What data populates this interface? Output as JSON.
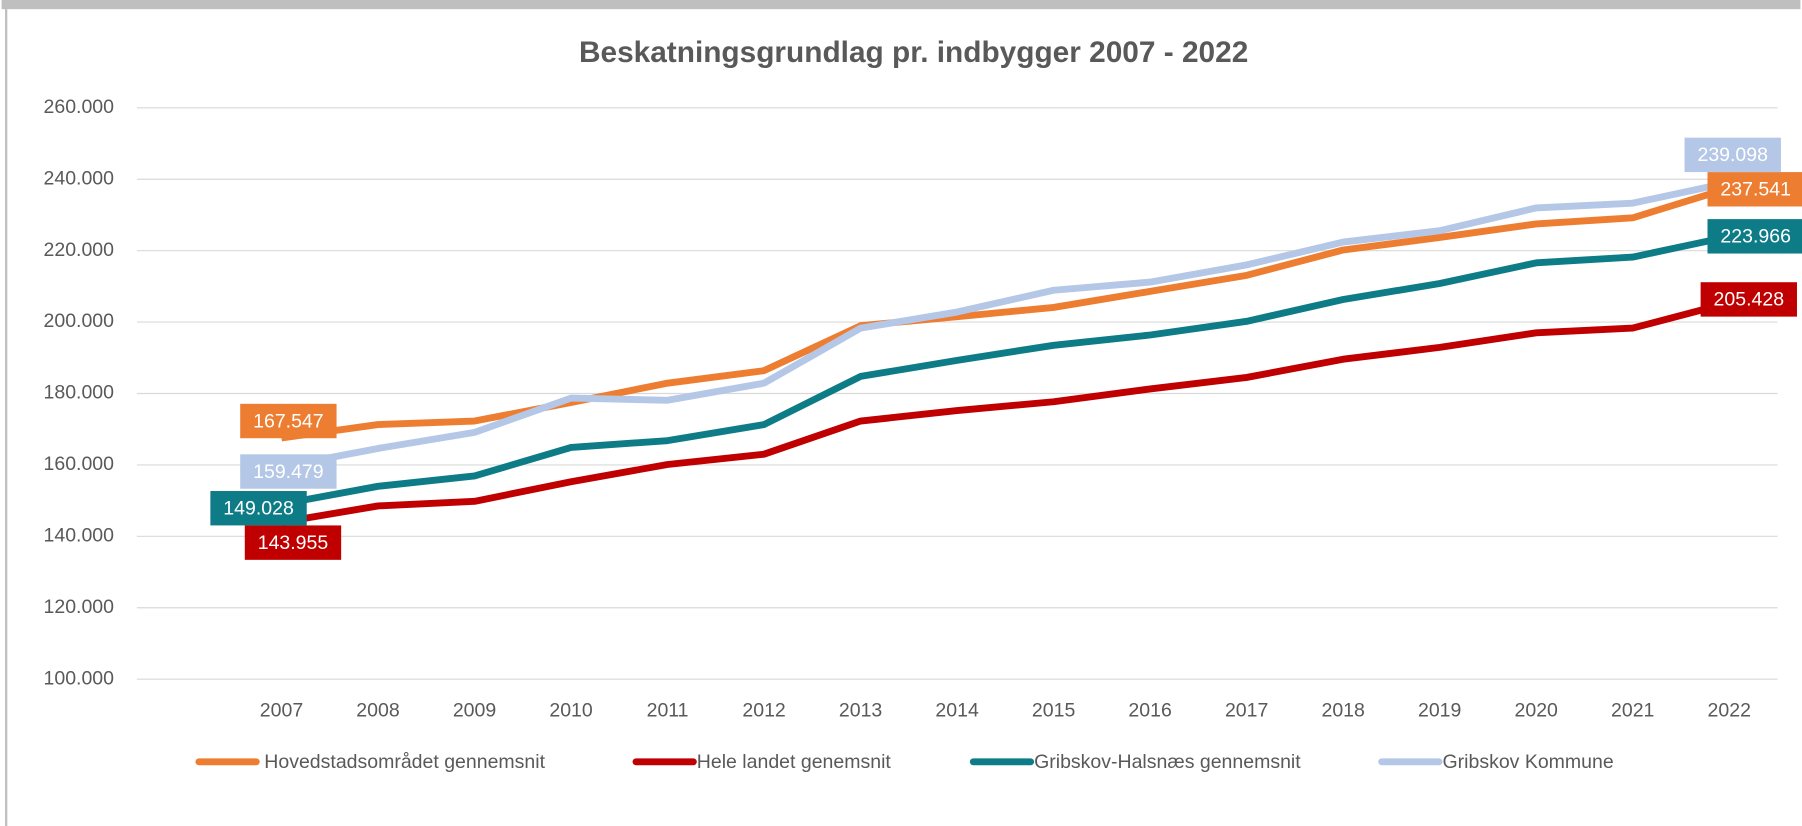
{
  "chart_data": {
    "type": "line",
    "title": "Beskatningsgrundlag pr. indbygger 2007 - 2022",
    "categories": [
      "2007",
      "2008",
      "2009",
      "2010",
      "2011",
      "2012",
      "2013",
      "2014",
      "2015",
      "2016",
      "2017",
      "2018",
      "2019",
      "2020",
      "2021",
      "2022"
    ],
    "ylim": [
      100000,
      260000
    ],
    "yticks": [
      {
        "value": 100000,
        "label": "100.000"
      },
      {
        "value": 120000,
        "label": "120.000"
      },
      {
        "value": 140000,
        "label": "140.000"
      },
      {
        "value": 160000,
        "label": "160.000"
      },
      {
        "value": 180000,
        "label": "180.000"
      },
      {
        "value": 200000,
        "label": "200.000"
      },
      {
        "value": 220000,
        "label": "220.000"
      },
      {
        "value": 240000,
        "label": "240.000"
      },
      {
        "value": 260000,
        "label": "260.000"
      }
    ],
    "grid": true,
    "legend": "bottom",
    "series": [
      {
        "name": "Hovedstadsområdet gennemsnit",
        "color": "#ed7d31",
        "values": [
          167547,
          171300,
          172300,
          177500,
          182900,
          186400,
          199000,
          201500,
          204100,
          208600,
          213100,
          220200,
          223700,
          227500,
          229200,
          237541
        ],
        "value_labels": [
          "167.547",
          null,
          null,
          null,
          null,
          null,
          null,
          null,
          null,
          null,
          null,
          null,
          null,
          null,
          null,
          "237.541"
        ]
      },
      {
        "name": "Hele landet genemsnit",
        "color": "#c00000",
        "values": [
          143955,
          148500,
          149800,
          155300,
          160100,
          163000,
          172300,
          175200,
          177700,
          181300,
          184500,
          189600,
          192900,
          197000,
          198300,
          205428
        ],
        "value_labels": [
          "143.955",
          null,
          null,
          null,
          null,
          null,
          null,
          null,
          null,
          null,
          null,
          null,
          null,
          null,
          null,
          "205.428"
        ]
      },
      {
        "name": "Gribskov-Halsnæs gennemsnit",
        "color": "#0e7c86",
        "values": [
          149028,
          154000,
          156900,
          164900,
          166800,
          171300,
          184800,
          189300,
          193500,
          196400,
          200200,
          206300,
          210800,
          216600,
          218200,
          223966
        ],
        "value_labels": [
          "149.028",
          null,
          null,
          null,
          null,
          null,
          null,
          null,
          null,
          null,
          null,
          null,
          null,
          null,
          null,
          "223.966"
        ]
      },
      {
        "name": "Gribskov Kommune",
        "color": "#b4c7e7",
        "values": [
          159479,
          164600,
          169100,
          178700,
          178100,
          182900,
          198300,
          202800,
          208900,
          211200,
          216000,
          222400,
          225600,
          232000,
          233300,
          239098
        ],
        "value_labels": [
          "159.479",
          null,
          null,
          null,
          null,
          null,
          null,
          null,
          null,
          null,
          null,
          null,
          null,
          null,
          null,
          "239.098"
        ]
      }
    ]
  }
}
